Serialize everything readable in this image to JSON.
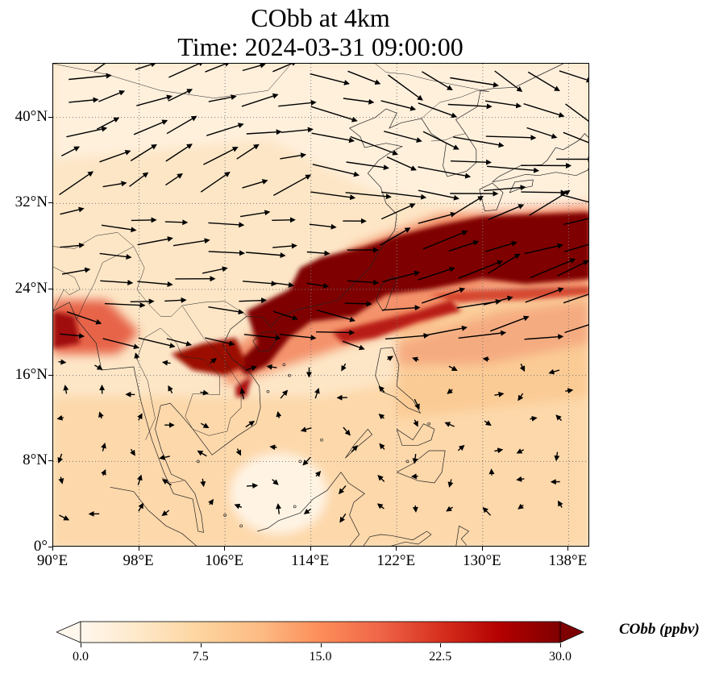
{
  "title": {
    "line1": "CObb at 4km",
    "line2": "Time: 2024-03-31 09:00:00"
  },
  "map": {
    "lon_range": [
      90,
      140
    ],
    "lat_range": [
      0,
      45
    ],
    "lon_ticks": [
      "90°E",
      "98°E",
      "106°E",
      "114°E",
      "122°E",
      "130°E",
      "138°E"
    ],
    "lat_ticks": [
      "0°",
      "8°N",
      "16°N",
      "24°N",
      "32°N",
      "40°N"
    ],
    "lon_tick_values": [
      90,
      98,
      106,
      114,
      122,
      130,
      138
    ],
    "lat_tick_values": [
      0,
      8,
      16,
      24,
      32,
      40
    ],
    "gridlines": true,
    "field_variable": "CObb",
    "overlay": "wind vectors",
    "plume_core_color": "#7f0000",
    "background_color": "#fde7c9"
  },
  "colorbar": {
    "label": "CObb (ppbv)",
    "ticks": [
      "0.0",
      "7.5",
      "15.0",
      "22.5",
      "30.0"
    ],
    "tick_values": [
      0,
      7.5,
      15,
      22.5,
      30
    ],
    "range": [
      0,
      30
    ],
    "extend": "both",
    "colormap": "OrRd",
    "colors": [
      "#fff7ec",
      "#fee8c8",
      "#fdd49e",
      "#fdbb84",
      "#fc8d59",
      "#ef6548",
      "#d7301f",
      "#b30000",
      "#7f0000"
    ]
  }
}
